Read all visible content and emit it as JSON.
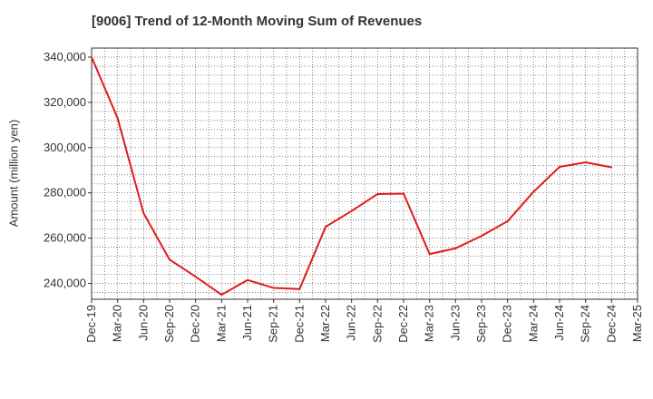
{
  "chart_data": {
    "type": "line",
    "title": "[9006]  Trend of 12-Month Moving Sum of Revenues",
    "xlabel": "",
    "ylabel": "Amount (million yen)",
    "x": [
      "Dec-19",
      "Mar-20",
      "Jun-20",
      "Sep-20",
      "Dec-20",
      "Mar-21",
      "Jun-21",
      "Sep-21",
      "Dec-21",
      "Mar-22",
      "Jun-22",
      "Sep-22",
      "Dec-22",
      "Mar-23",
      "Jun-23",
      "Sep-23",
      "Dec-23",
      "Mar-24",
      "Jun-24",
      "Sep-24",
      "Dec-24",
      "Mar-25"
    ],
    "series": [
      {
        "values": [
          340000,
          313000,
          271000,
          250500,
          243000,
          235000,
          241500,
          238000,
          237500,
          265000,
          272000,
          279500,
          279700,
          253000,
          255500,
          261000,
          267500,
          280500,
          291500,
          293500,
          291300,
          null
        ],
        "color": "#e31a1c"
      }
    ],
    "yticks": [
      240000,
      260000,
      280000,
      300000,
      320000,
      340000
    ],
    "ytick_labels": [
      "240,000",
      "260,000",
      "280,000",
      "300,000",
      "320,000",
      "340,000"
    ],
    "ylim": [
      233000,
      344000
    ],
    "grid": true,
    "legend": "none"
  }
}
